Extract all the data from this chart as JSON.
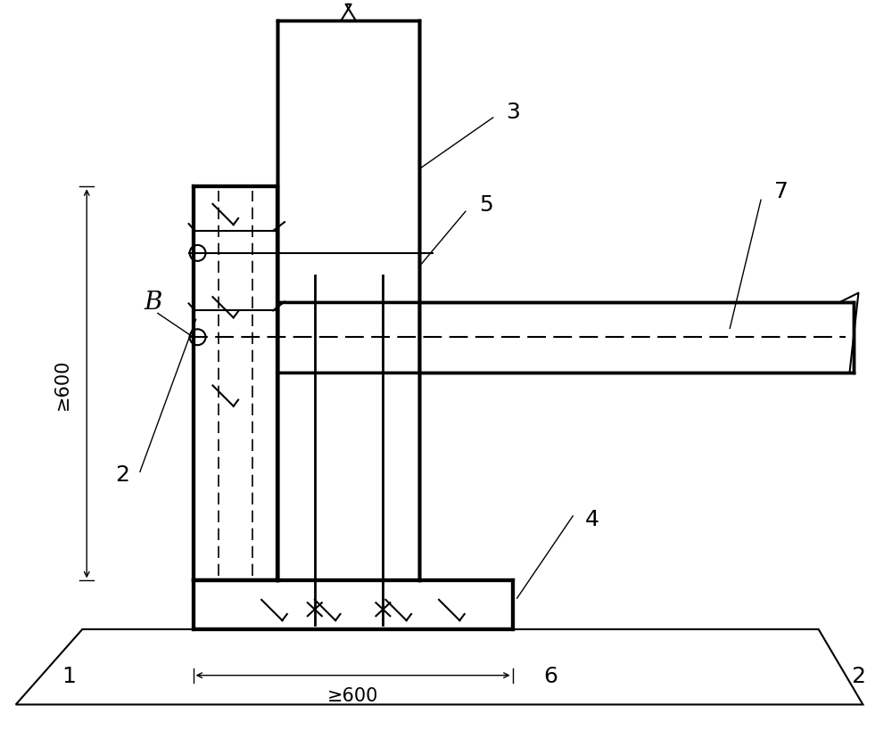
{
  "bg_color": "#ffffff",
  "line_color": "#000000",
  "lw_thick": 2.5,
  "lw_medium": 1.5,
  "lw_thin": 1.0,
  "label_fontsize": 18,
  "dim_fontsize": 15
}
